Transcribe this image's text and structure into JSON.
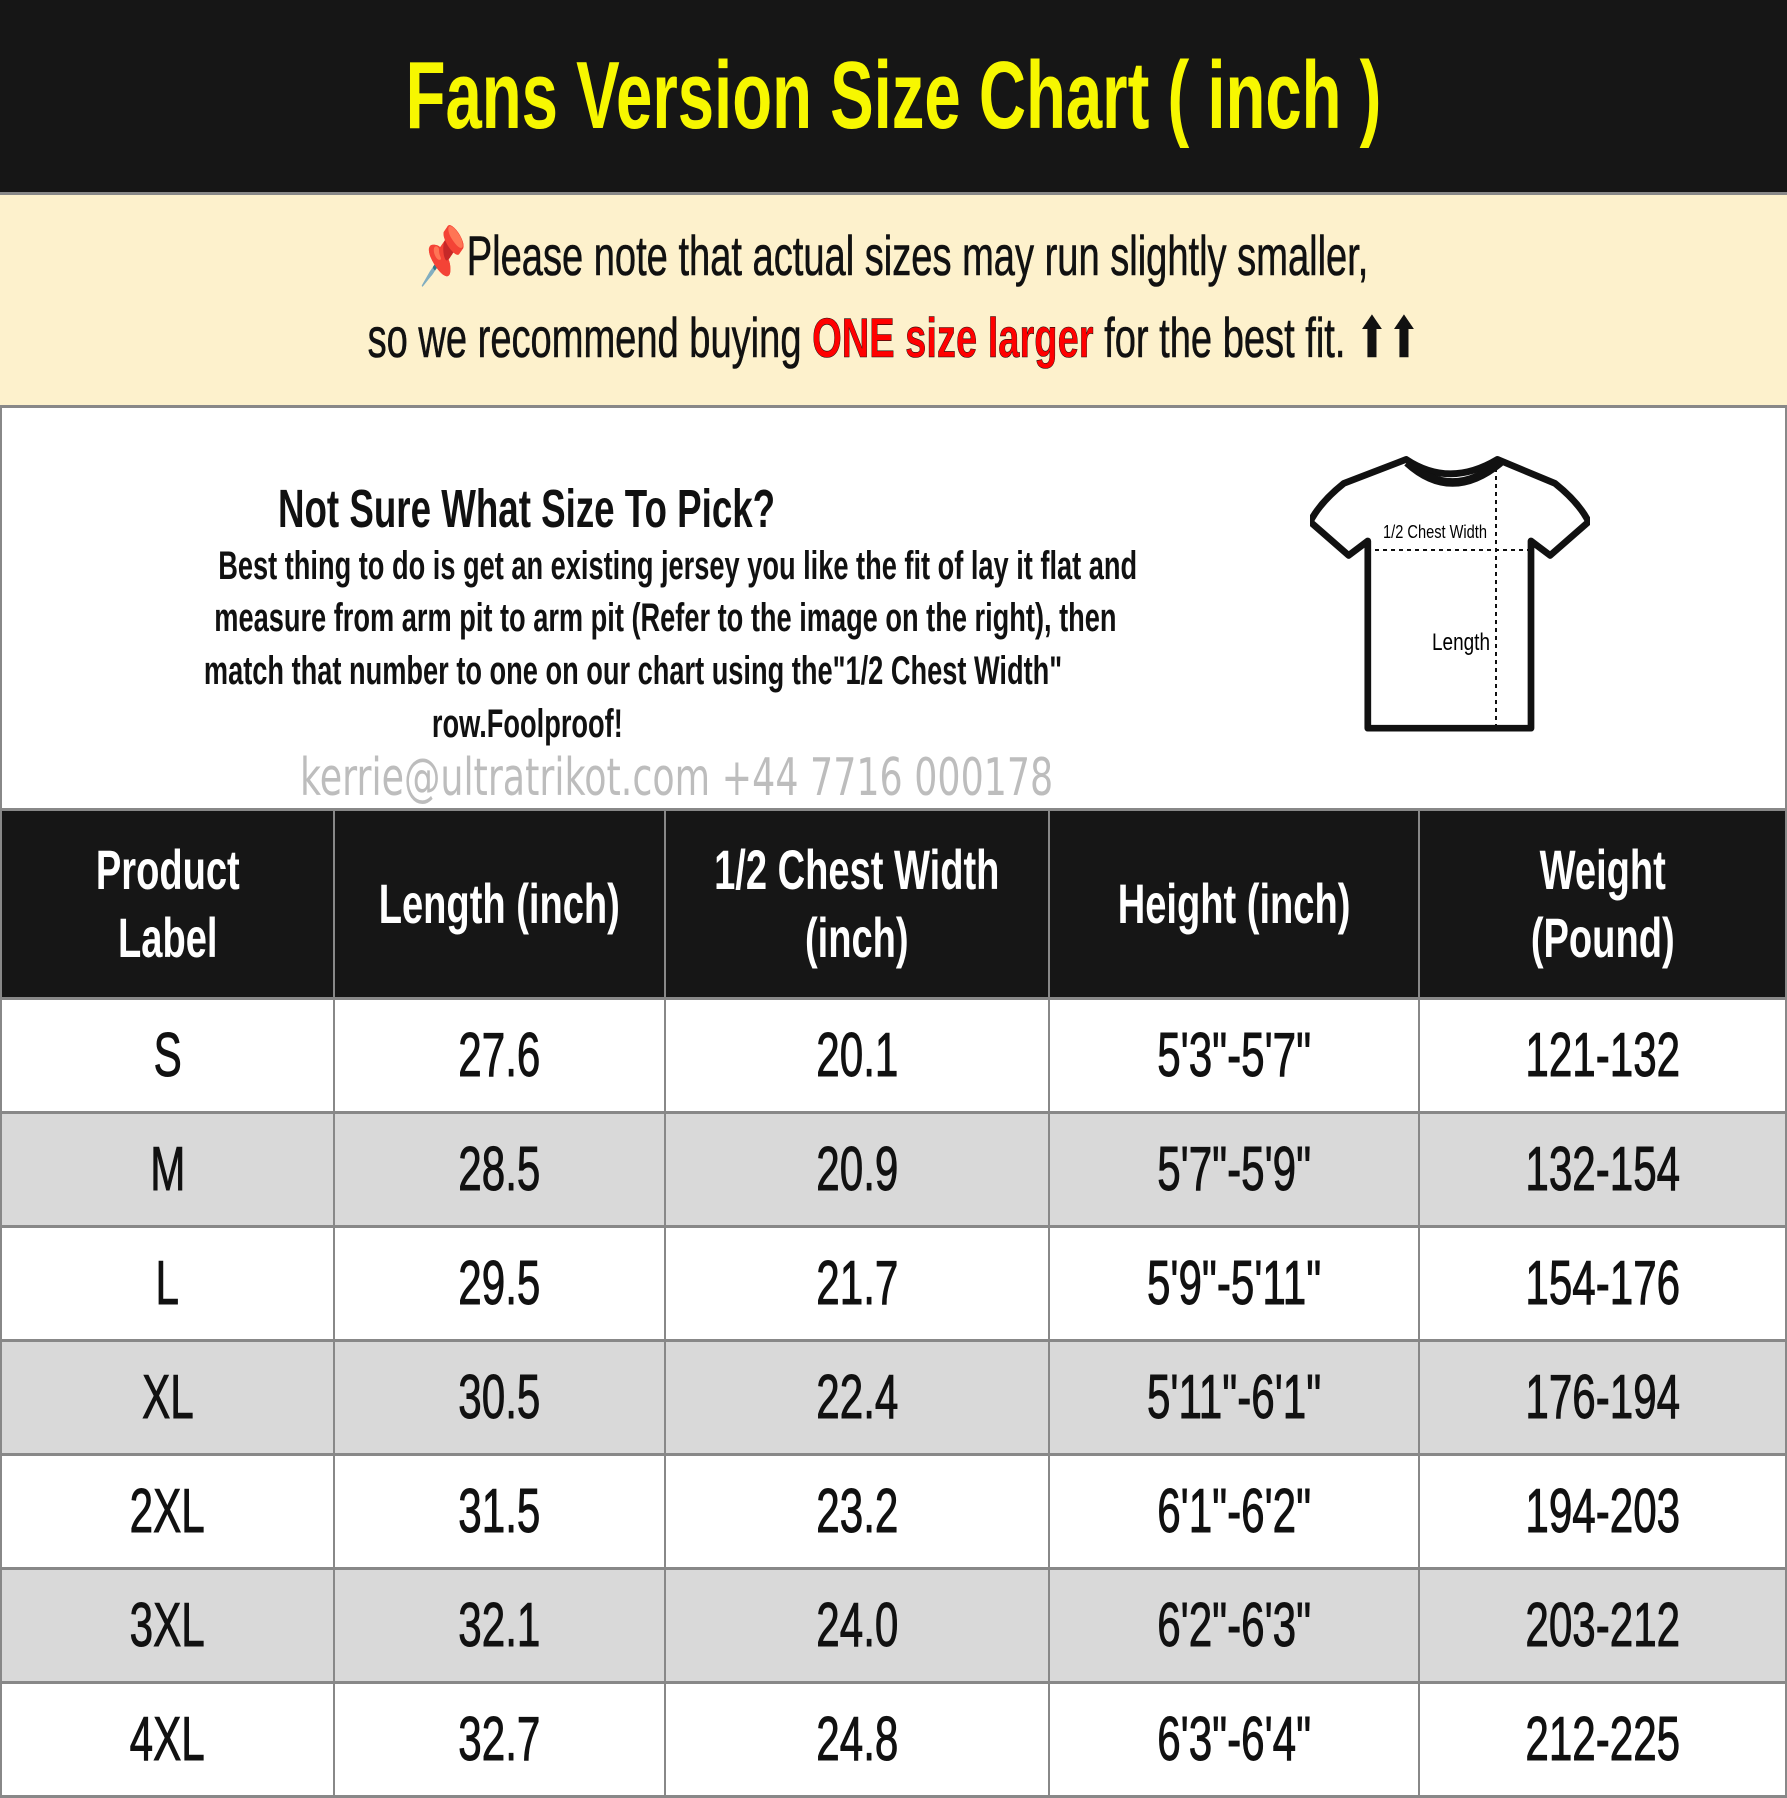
{
  "title": "Fans Version Size Chart ( inch )",
  "note": {
    "icon": "pushpin-icon",
    "line1": "Please note that actual sizes may run slightly smaller,",
    "line2_before": "so we recommend buying ",
    "line2_highlight": "ONE size larger",
    "line2_after": " for the best fit. ",
    "arrows": "⬆⬆",
    "highlight_color": "#ff0000"
  },
  "info": {
    "heading": "Not Sure What Size To Pick?",
    "body": [
      "Best thing to do is get an existing jersey you like the fit of lay it flat and",
      "measure from arm pit to arm pit (Refer to the image on the right), then",
      "match that number to one on our chart using the\"1/2 Chest Width\"",
      "row.Foolproof!"
    ],
    "diagram": {
      "chest_label": "1/2 Chest Width",
      "length_label": "Length"
    }
  },
  "table": {
    "headers": [
      [
        "Product",
        "Label"
      ],
      [
        "Length (inch)"
      ],
      [
        "1/2 Chest Width",
        "(inch)"
      ],
      [
        "Height (inch)"
      ],
      [
        "Weight",
        "(Pound)"
      ]
    ],
    "rows": [
      [
        "S",
        "27.6",
        "20.1",
        "5'3\"-5'7\"",
        "121-132"
      ],
      [
        "M",
        "28.5",
        "20.9",
        "5'7\"-5'9\"",
        "132-154"
      ],
      [
        "L",
        "29.5",
        "21.7",
        "5'9\"-5'11\"",
        "154-176"
      ],
      [
        "XL",
        "30.5",
        "22.4",
        "5'11\"-6'1\"",
        "176-194"
      ],
      [
        "2XL",
        "31.5",
        "23.2",
        "6'1\"-6'2\"",
        "194-203"
      ],
      [
        "3XL",
        "32.1",
        "24.0",
        "6'2\"-6'3\"",
        "203-212"
      ],
      [
        "4XL",
        "32.7",
        "24.8",
        "6'3\"-6'4\"",
        "212-225"
      ]
    ]
  },
  "watermark": "kerrie@ultratrikot.com   +44 7716 000178",
  "colors": {
    "title": "#f7f700",
    "header_bg": "#161616",
    "note_bg": "#fdf1cc",
    "alt_row": "#d9d9d9"
  }
}
